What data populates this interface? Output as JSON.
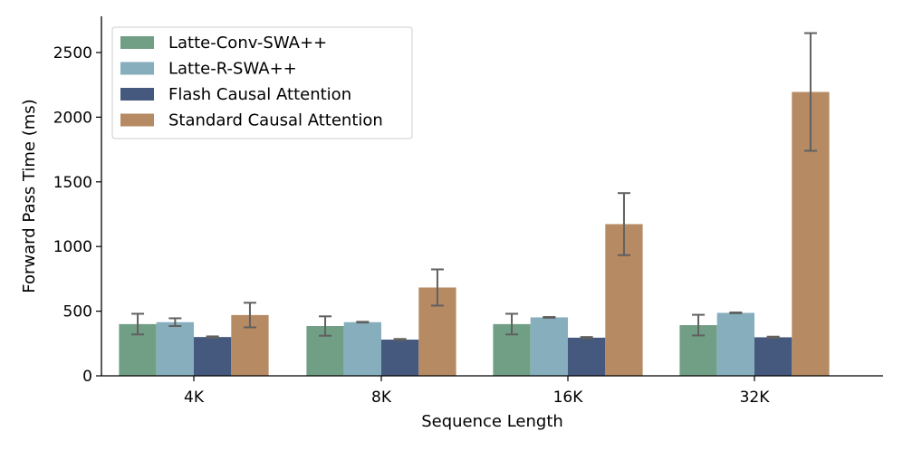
{
  "chart_data": {
    "type": "bar",
    "title": "",
    "xlabel": "Sequence Length",
    "ylabel": "Forward Pass Time (ms)",
    "categories": [
      "4K",
      "8K",
      "16K",
      "32K"
    ],
    "ylim": [
      0,
      2780
    ],
    "yticks": [
      0,
      500,
      1000,
      1500,
      2000,
      2500
    ],
    "legend_position": "top-left",
    "grid": false,
    "series": [
      {
        "name": "Latte-Conv-SWA++",
        "color": "#719f85",
        "values": [
          400,
          385,
          400,
          392
        ],
        "err": [
          80,
          75,
          80,
          80
        ]
      },
      {
        "name": "Latte-R-SWA++",
        "color": "#86aebd",
        "values": [
          415,
          415,
          452,
          487
        ],
        "err": [
          30,
          3,
          3,
          3
        ]
      },
      {
        "name": "Flash Causal Attention",
        "color": "#45587d",
        "values": [
          300,
          280,
          295,
          298
        ],
        "err": [
          5,
          5,
          5,
          5
        ]
      },
      {
        "name": "Standard Causal Attention",
        "color": "#b68a63",
        "values": [
          470,
          683,
          1173,
          2195
        ],
        "err": [
          95,
          140,
          240,
          455
        ]
      }
    ],
    "error_bar_color": "#606060"
  }
}
